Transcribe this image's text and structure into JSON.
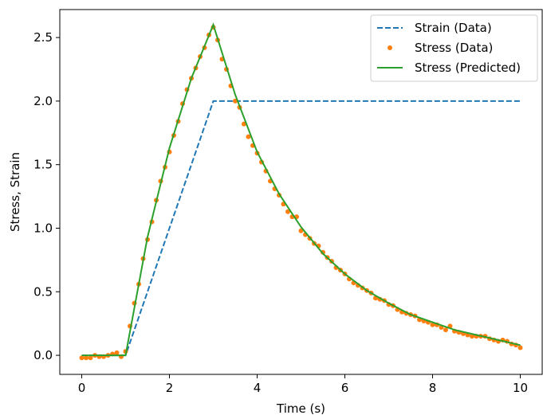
{
  "chart_data": {
    "type": "line",
    "title": "",
    "xlabel": "Time (s)",
    "ylabel": "Stress, Strain",
    "xlim": [
      -0.5,
      10.5
    ],
    "ylim": [
      -0.15,
      2.72
    ],
    "xticks": [
      0,
      2,
      4,
      6,
      8,
      10
    ],
    "yticks": [
      0.0,
      0.5,
      1.0,
      1.5,
      2.0,
      2.5
    ],
    "xtick_labels": [
      "0",
      "2",
      "4",
      "6",
      "8",
      "10"
    ],
    "ytick_labels": [
      "0.0",
      "0.5",
      "1.0",
      "1.5",
      "2.0",
      "2.5"
    ],
    "grid": false,
    "legend_position": "top-right",
    "colors": {
      "strain": "#1f77b4",
      "stress_data": "#ff7f0e",
      "stress_pred": "#2ca02c"
    },
    "series": [
      {
        "name": "Strain (Data)",
        "style": "dashed-line",
        "x": [
          0,
          1,
          3,
          10
        ],
        "y": [
          0,
          0,
          2,
          2
        ]
      },
      {
        "name": "Stress (Data)",
        "style": "dots",
        "x": [
          0.0,
          0.1,
          0.2,
          0.3,
          0.4,
          0.5,
          0.6,
          0.7,
          0.8,
          0.9,
          1.0,
          1.1,
          1.2,
          1.3,
          1.4,
          1.5,
          1.6,
          1.7,
          1.8,
          1.9,
          2.0,
          2.1,
          2.2,
          2.3,
          2.4,
          2.5,
          2.6,
          2.7,
          2.8,
          2.9,
          3.0,
          3.1,
          3.2,
          3.3,
          3.4,
          3.5,
          3.6,
          3.7,
          3.8,
          3.9,
          4.0,
          4.1,
          4.2,
          4.3,
          4.4,
          4.5,
          4.6,
          4.7,
          4.8,
          4.9,
          5.0,
          5.1,
          5.2,
          5.3,
          5.4,
          5.5,
          5.6,
          5.7,
          5.8,
          5.9,
          6.0,
          6.1,
          6.2,
          6.3,
          6.4,
          6.5,
          6.6,
          6.7,
          6.8,
          6.9,
          7.0,
          7.1,
          7.2,
          7.3,
          7.4,
          7.5,
          7.6,
          7.7,
          7.8,
          7.9,
          8.0,
          8.1,
          8.2,
          8.3,
          8.4,
          8.5,
          8.6,
          8.7,
          8.8,
          8.9,
          9.0,
          9.1,
          9.2,
          9.3,
          9.4,
          9.5,
          9.6,
          9.7,
          9.8,
          9.9,
          10.0
        ],
        "y": [
          -0.02,
          -0.02,
          -0.02,
          0.0,
          -0.01,
          -0.01,
          0.0,
          0.01,
          0.02,
          -0.01,
          0.03,
          0.23,
          0.41,
          0.56,
          0.76,
          0.91,
          1.05,
          1.22,
          1.37,
          1.48,
          1.6,
          1.73,
          1.84,
          1.98,
          2.09,
          2.18,
          2.26,
          2.35,
          2.42,
          2.52,
          2.58,
          2.48,
          2.33,
          2.25,
          2.12,
          2.0,
          1.95,
          1.82,
          1.72,
          1.65,
          1.59,
          1.52,
          1.45,
          1.37,
          1.31,
          1.26,
          1.19,
          1.13,
          1.09,
          1.09,
          0.98,
          0.95,
          0.92,
          0.88,
          0.86,
          0.81,
          0.77,
          0.74,
          0.69,
          0.67,
          0.64,
          0.6,
          0.57,
          0.55,
          0.53,
          0.51,
          0.49,
          0.45,
          0.44,
          0.43,
          0.4,
          0.39,
          0.36,
          0.34,
          0.33,
          0.32,
          0.31,
          0.28,
          0.27,
          0.26,
          0.24,
          0.24,
          0.22,
          0.2,
          0.23,
          0.19,
          0.18,
          0.17,
          0.16,
          0.15,
          0.15,
          0.15,
          0.15,
          0.13,
          0.12,
          0.11,
          0.12,
          0.11,
          0.09,
          0.08,
          0.06
        ]
      },
      {
        "name": "Stress (Predicted)",
        "style": "solid-line",
        "x": [
          0,
          1,
          1.5,
          2,
          2.5,
          3,
          3.5,
          4,
          4.5,
          5,
          5.5,
          6,
          6.5,
          7,
          7.5,
          8,
          8.5,
          9,
          9.5,
          10
        ],
        "y": [
          0,
          0,
          0.93,
          1.63,
          2.18,
          2.6,
          2.05,
          1.6,
          1.27,
          1.01,
          0.8,
          0.64,
          0.51,
          0.41,
          0.32,
          0.26,
          0.2,
          0.16,
          0.12,
          0.08
        ]
      }
    ]
  }
}
